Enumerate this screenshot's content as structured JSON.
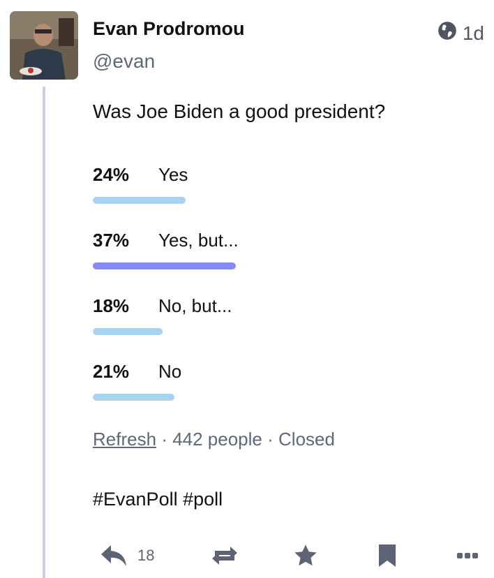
{
  "author": {
    "display_name": "Evan Prodromou",
    "handle": "@evan"
  },
  "meta": {
    "visibility_icon": "globe-icon",
    "time": "1d"
  },
  "status": {
    "text": "Was Joe Biden a good president?"
  },
  "poll": {
    "options": [
      {
        "percent": "24%",
        "label": "Yes",
        "fraction": 0.24,
        "leading": false
      },
      {
        "percent": "37%",
        "label": "Yes, but...",
        "fraction": 0.37,
        "leading": true
      },
      {
        "percent": "18%",
        "label": "No, but...",
        "fraction": 0.18,
        "leading": false
      },
      {
        "percent": "21%",
        "label": "No",
        "fraction": 0.21,
        "leading": false
      }
    ],
    "refresh_label": "Refresh",
    "voters": "442 people",
    "state": "Closed",
    "separator": "·"
  },
  "hashtags": "#EvanPoll #poll",
  "actions": {
    "reply_icon": "reply-icon",
    "reply_count": "18",
    "boost_icon": "boost-icon",
    "favourite_icon": "star-icon",
    "bookmark_icon": "bookmark-icon",
    "more_icon": "more-icon"
  },
  "colors": {
    "bar": "#a9d3f2",
    "bar_leading": "#858afa",
    "icon": "#5e6475",
    "thread_line": "#c7d3e0"
  }
}
